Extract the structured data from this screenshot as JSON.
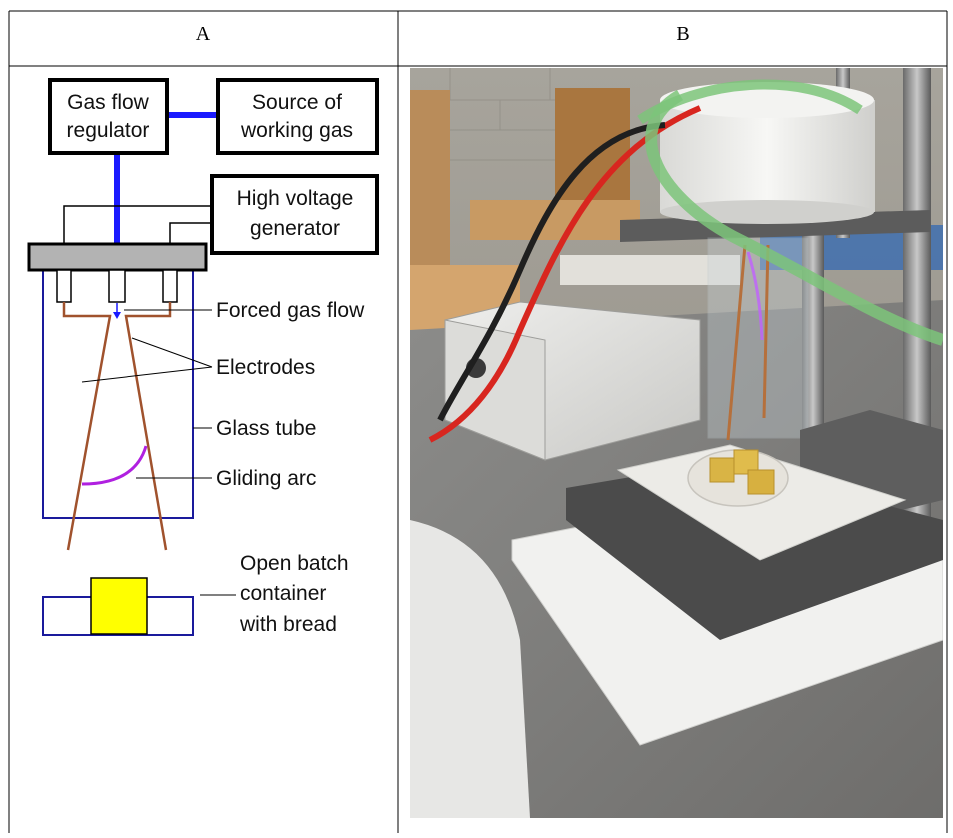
{
  "table": {
    "header_a": "A",
    "header_b": "B"
  },
  "diagram": {
    "gas_flow_regulator": [
      "Gas flow",
      "regulator"
    ],
    "source_of_working_gas": [
      "Source of",
      "working gas"
    ],
    "high_voltage_generator": [
      "High voltage",
      "generator"
    ],
    "forced_gas_flow": "Forced gas flow",
    "electrodes": "Electrodes",
    "glass_tube": "Glass tube",
    "gliding_arc": "Gliding arc",
    "container": [
      "Open batch",
      "container",
      "with bread"
    ]
  },
  "colors": {
    "gas_line": "#1a1aff",
    "electrode": "#a0522d",
    "arc": "#b020e0",
    "bread": "#ffff00",
    "tube_outline": "#1a1a9c",
    "plate": "#b3b3b3"
  },
  "photo": {
    "subject": "gliding arc plasma reactor above bread samples on hot plate"
  }
}
